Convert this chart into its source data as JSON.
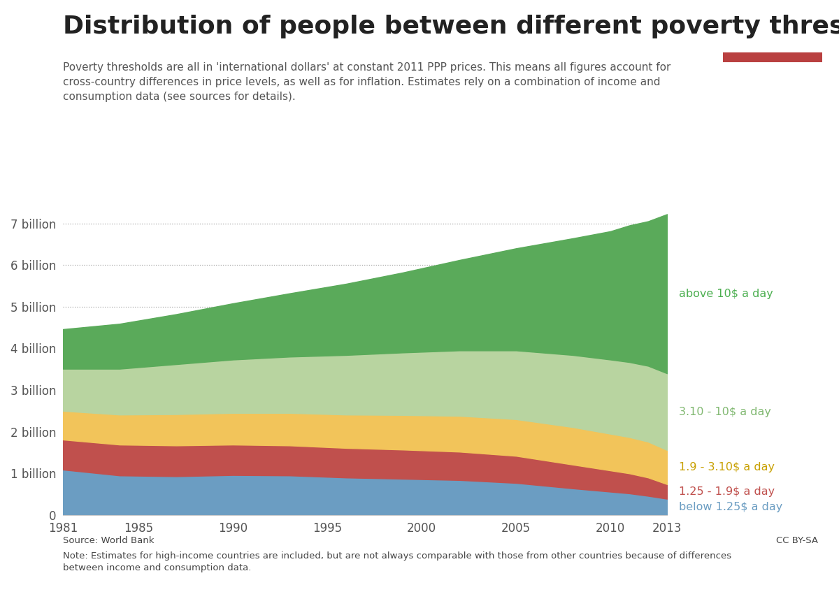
{
  "title": "Distribution of people between different poverty thresholds, World",
  "subtitle": "Poverty thresholds are all in 'international dollars' at constant 2011 PPP prices. This means all figures account for\ncross-country differences in price levels, as well as for inflation. Estimates rely on a combination of income and\nconsumption data (see sources for details).",
  "source_text": "Source: World Bank",
  "note_text": "Note: Estimates for high-income countries are included, but are not always comparable with those from other countries because of differences\nbetween income and consumption data.",
  "cc_text": "CC BY-SA",
  "years": [
    1981,
    1984,
    1987,
    1990,
    1993,
    1996,
    1999,
    2002,
    2005,
    2008,
    2010,
    2011,
    2012,
    2013
  ],
  "below_125": [
    1.09,
    0.95,
    0.93,
    0.96,
    0.95,
    0.9,
    0.87,
    0.84,
    0.77,
    0.64,
    0.56,
    0.52,
    0.46,
    0.39
  ],
  "from_125_to_190": [
    0.72,
    0.74,
    0.74,
    0.73,
    0.72,
    0.71,
    0.7,
    0.68,
    0.65,
    0.57,
    0.51,
    0.48,
    0.44,
    0.35
  ],
  "from_190_to_310": [
    0.69,
    0.72,
    0.75,
    0.76,
    0.78,
    0.8,
    0.83,
    0.86,
    0.88,
    0.9,
    0.88,
    0.87,
    0.86,
    0.82
  ],
  "from_310_to_10": [
    1.01,
    1.1,
    1.2,
    1.28,
    1.35,
    1.43,
    1.5,
    1.57,
    1.65,
    1.73,
    1.78,
    1.8,
    1.82,
    1.84
  ],
  "above_10": [
    0.95,
    1.08,
    1.2,
    1.35,
    1.52,
    1.71,
    1.92,
    2.17,
    2.45,
    2.8,
    3.08,
    3.28,
    3.47,
    3.82
  ],
  "colors": {
    "below_125": "#6b9dc2",
    "from_125_to_190": "#c0504d",
    "from_190_to_310": "#f2c45a",
    "from_310_to_10": "#b8d4a0",
    "above_10": "#5aaa5a"
  },
  "label_colors": {
    "below_125": "#6b9dc2",
    "from_125_to_190": "#c0504d",
    "from_190_to_310": "#c8a000",
    "from_310_to_10": "#80b870",
    "above_10": "#4caf50"
  },
  "labels": {
    "below_125": "below 1.25$ a day",
    "from_125_to_190": "1.25 - 1.9$ a day",
    "from_190_to_310": "1.9 - 3.10$ a day",
    "from_310_to_10": "3.10 - 10$ a day",
    "above_10": "above 10$ a day"
  },
  "ylim": [
    0,
    7.6
  ],
  "yticks": [
    0,
    1,
    2,
    3,
    4,
    5,
    6,
    7
  ],
  "ytick_labels": [
    "0",
    "1 billion",
    "2 billion",
    "3 billion",
    "4 billion",
    "5 billion",
    "6 billion",
    "7 billion"
  ],
  "background_color": "#ffffff",
  "logo_bg_color": "#3d5a7a",
  "logo_red": "#b94040",
  "title_fontsize": 26,
  "subtitle_fontsize": 11,
  "tick_fontsize": 12
}
